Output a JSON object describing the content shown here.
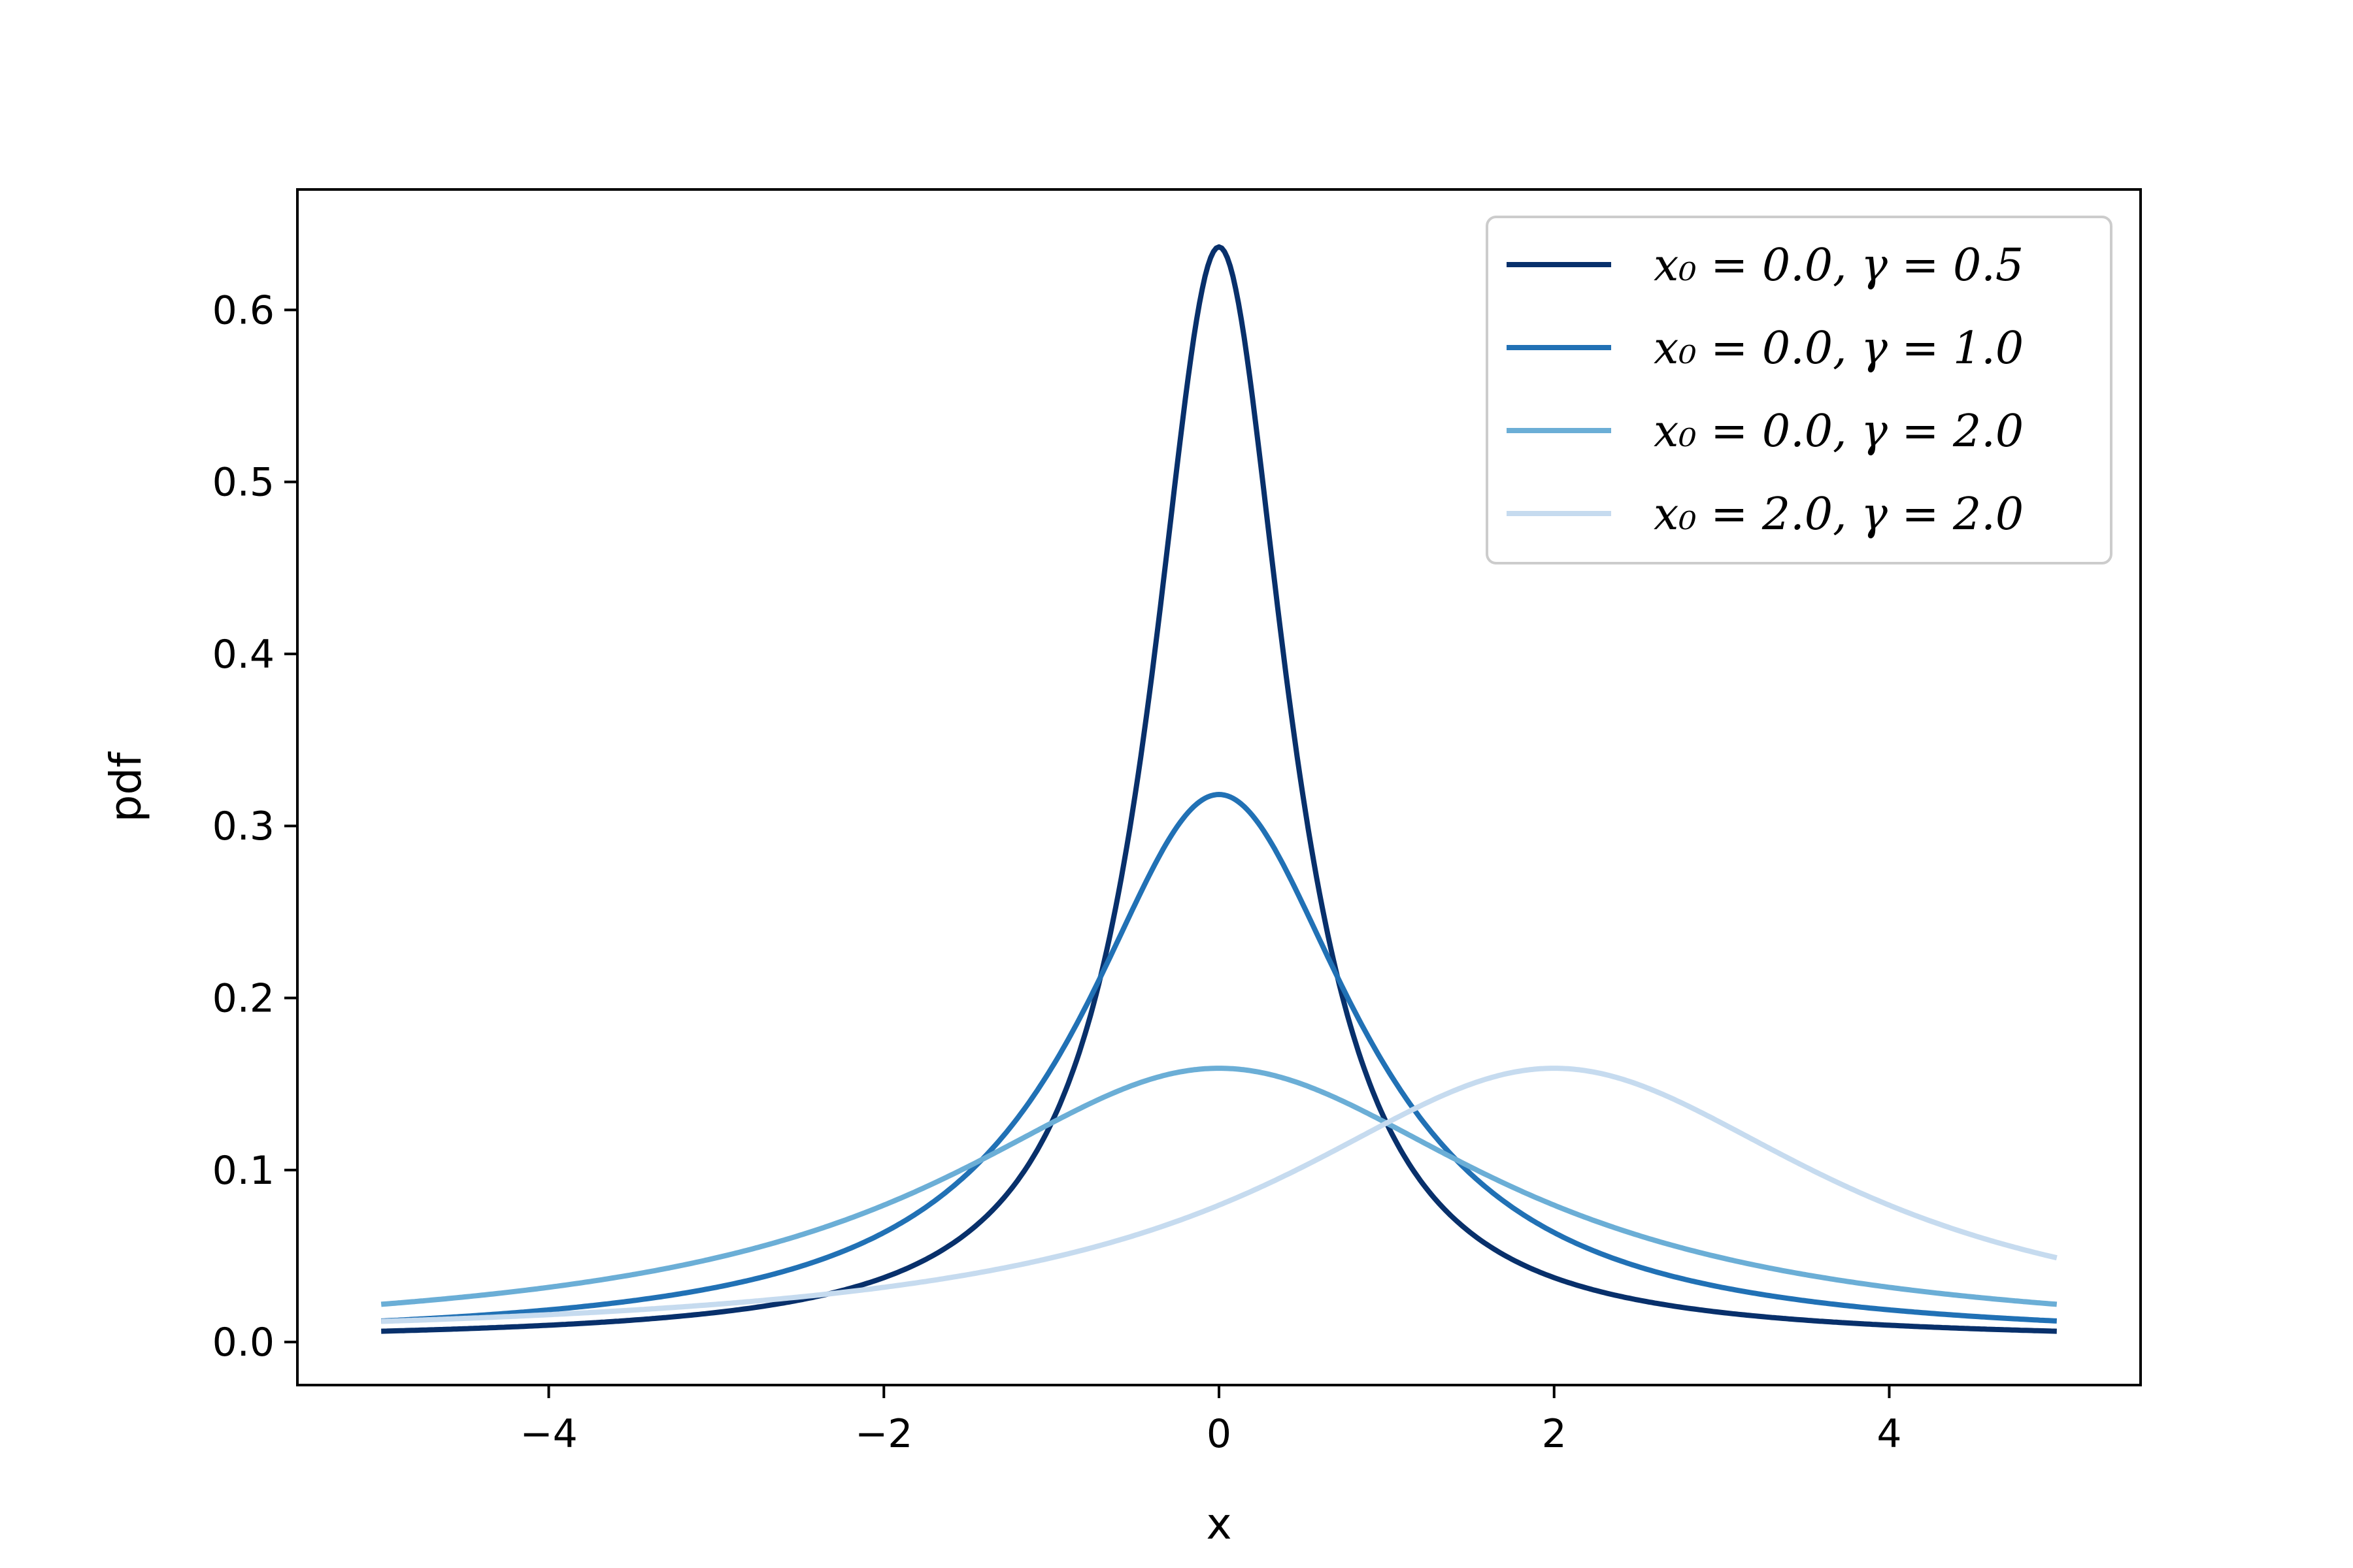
{
  "chart_data": {
    "type": "line",
    "title": "",
    "xlabel": "x",
    "ylabel": "pdf",
    "xlim": [
      -5.5,
      5.5
    ],
    "ylim": [
      -0.025,
      0.67
    ],
    "x_range": [
      -5,
      5
    ],
    "x_ticks": [
      -4,
      -2,
      0,
      2,
      4
    ],
    "x_tick_labels": [
      "−4",
      "−2",
      "0",
      "2",
      "4"
    ],
    "y_ticks": [
      0.0,
      0.1,
      0.2,
      0.3,
      0.4,
      0.5,
      0.6
    ],
    "y_tick_labels": [
      "0.0",
      "0.1",
      "0.2",
      "0.3",
      "0.4",
      "0.5",
      "0.6"
    ],
    "grid": false,
    "legend_position": "top-right",
    "distribution": "cauchy",
    "series": [
      {
        "name": "x₀ = 0.0, γ = 0.5",
        "x0": 0.0,
        "gamma": 0.5,
        "color": "#08306b",
        "peak": 0.637
      },
      {
        "name": "x₀ = 0.0, γ = 1.0",
        "x0": 0.0,
        "gamma": 1.0,
        "color": "#2171b5",
        "peak": 0.318
      },
      {
        "name": "x₀ = 0.0, γ = 2.0",
        "x0": 0.0,
        "gamma": 2.0,
        "color": "#6baed6",
        "peak": 0.159
      },
      {
        "name": "x₀ = 2.0, γ = 2.0",
        "x0": 2.0,
        "gamma": 2.0,
        "color": "#c6dbef",
        "peak": 0.159
      }
    ]
  }
}
